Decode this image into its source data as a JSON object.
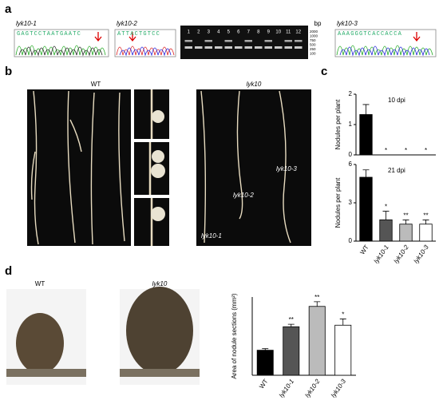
{
  "panel_labels": [
    "a",
    "b",
    "c",
    "d"
  ],
  "panel_a": {
    "seq_labels": [
      "lyk10-1",
      "lyk10-2",
      "lyk10-3"
    ],
    "sequences": [
      "GAGTCCTAATGAATC",
      "ATTACTGTCC",
      "AAAGGGTCACCACCA"
    ],
    "lanes": [
      "1",
      "2",
      "3",
      "4",
      "5",
      "6",
      "7",
      "8",
      "9",
      "10",
      "11",
      "12"
    ],
    "bp_label": "bp",
    "ladder": [
      "2000",
      "1000",
      "750",
      "500",
      "250",
      "100"
    ]
  },
  "panel_b": {
    "wt": "WT",
    "mutant": "lyk10",
    "tags": [
      "lyk10-2",
      "lyk10-3",
      "lyk10-1"
    ]
  },
  "panel_d": {
    "wt": "WT",
    "mutant": "lyk10"
  },
  "chart_data": [
    {
      "type": "bar",
      "title": "10 dpi",
      "y_label": "Nodules per plant",
      "values": [
        1.33,
        0,
        0,
        0
      ],
      "errors": [
        0.33,
        0,
        0,
        0
      ],
      "significance": [
        null,
        "*",
        "*",
        "*"
      ],
      "colors": [
        "#000000",
        "#555555",
        "#bbbbbb",
        "#ffffff"
      ],
      "ylim": [
        0,
        2
      ],
      "yticks": [
        0,
        1,
        2
      ]
    },
    {
      "type": "bar",
      "title": "21 dpi",
      "y_label": "Nodules per plant",
      "categories": [
        "WT",
        "lyk10-1",
        "lyk10-2",
        "lyk10-3"
      ],
      "values": [
        5,
        1.67,
        1.33,
        1.33
      ],
      "errors": [
        0.58,
        0.67,
        0.33,
        0.33
      ],
      "significance": [
        null,
        "*",
        "**",
        "**"
      ],
      "colors": [
        "#000000",
        "#555555",
        "#bbbbbb",
        "#ffffff"
      ],
      "ylim": [
        0,
        6
      ],
      "yticks": [
        0,
        3,
        6
      ]
    },
    {
      "type": "bar",
      "y_label": "Area of nodule sections (mm²)",
      "categories": [
        "WT",
        "lyk10-1",
        "lyk10-2",
        "lyk10-3"
      ],
      "values": [
        0.8,
        1.55,
        2.2,
        1.6
      ],
      "errors": [
        0.05,
        0.08,
        0.15,
        0.2
      ],
      "significance": [
        null,
        "**",
        "**",
        "*"
      ],
      "colors": [
        "#000000",
        "#555555",
        "#bbbbbb",
        "#ffffff"
      ],
      "ylim": [
        0,
        2.5
      ]
    }
  ]
}
